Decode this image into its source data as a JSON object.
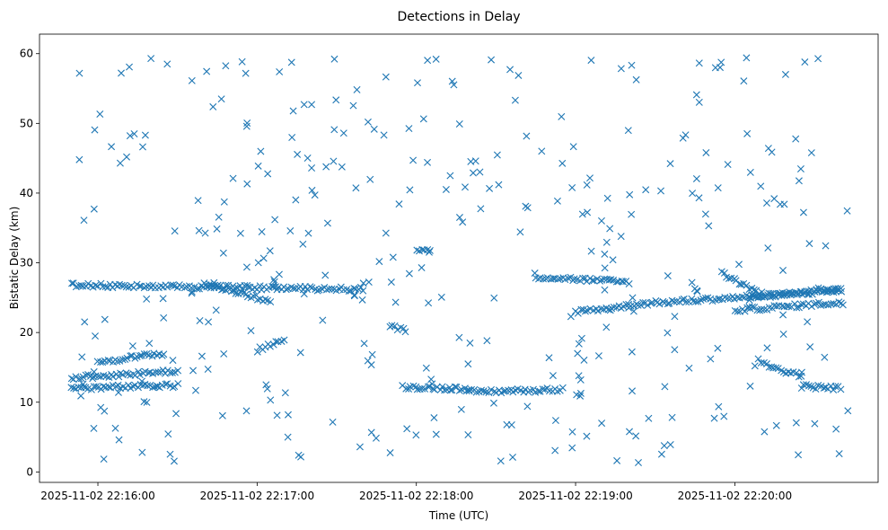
{
  "chart_data": {
    "type": "scatter",
    "title": "Detections in Delay",
    "xlabel": "Time (UTC)",
    "ylabel": "Bistatic Delay (km)",
    "marker": "x",
    "marker_color": "#1f77b4",
    "grid": false,
    "legend": "none",
    "xlim": [
      "2025-11-02 22:15:38",
      "2025-11-02 22:20:54"
    ],
    "ylim": [
      -1.5,
      62.8
    ],
    "x_ticks": [
      "2025-11-02 22:16:00",
      "2025-11-02 22:17:00",
      "2025-11-02 22:18:00",
      "2025-11-02 22:19:00",
      "2025-11-02 22:20:00"
    ],
    "y_ticks": [
      0,
      10,
      20,
      30,
      40,
      50,
      60
    ],
    "start_time": "2025-11-02 22:15:50",
    "end_time": "2025-11-02 22:20:43",
    "bands": [
      {
        "t0": "2025-11-02 22:15:50",
        "t1": "2025-11-02 22:17:40",
        "y0": 26.8,
        "y1": 26.2
      },
      {
        "t0": "2025-11-02 22:15:50",
        "t1": "2025-11-02 22:16:30",
        "y0": 13.5,
        "y1": 14.5
      },
      {
        "t0": "2025-11-02 22:15:50",
        "t1": "2025-11-02 22:16:30",
        "y0": 12.0,
        "y1": 12.4
      },
      {
        "t0": "2025-11-02 22:16:00",
        "t1": "2025-11-02 22:16:25",
        "y0": 15.8,
        "y1": 17.0
      },
      {
        "t0": "2025-11-02 22:16:40",
        "t1": "2025-11-02 22:17:05",
        "y0": 27.0,
        "y1": 24.5
      },
      {
        "t0": "2025-11-02 22:17:00",
        "t1": "2025-11-02 22:17:10",
        "y0": 17.5,
        "y1": 19.0
      },
      {
        "t0": "2025-11-02 22:17:50",
        "t1": "2025-11-02 22:17:55",
        "y0": 20.8,
        "y1": 20.5
      },
      {
        "t0": "2025-11-02 22:17:55",
        "t1": "2025-11-02 22:18:20",
        "y0": 12.2,
        "y1": 11.9
      },
      {
        "t0": "2025-11-02 22:18:00",
        "t1": "2025-11-02 22:18:05",
        "y0": 32.0,
        "y1": 31.5
      },
      {
        "t0": "2025-11-02 22:18:20",
        "t1": "2025-11-02 22:18:55",
        "y0": 11.5,
        "y1": 11.8
      },
      {
        "t0": "2025-11-02 22:18:45",
        "t1": "2025-11-02 22:19:20",
        "y0": 28.0,
        "y1": 27.2
      },
      {
        "t0": "2025-11-02 22:19:00",
        "t1": "2025-11-02 22:19:20",
        "y0": 23.0,
        "y1": 23.8
      },
      {
        "t0": "2025-11-02 22:19:20",
        "t1": "2025-11-02 22:20:40",
        "y0": 24.0,
        "y1": 26.0
      },
      {
        "t0": "2025-11-02 22:19:55",
        "t1": "2025-11-02 22:20:10",
        "y0": 28.5,
        "y1": 25.5
      },
      {
        "t0": "2025-11-02 22:20:00",
        "t1": "2025-11-02 22:20:40",
        "y0": 23.2,
        "y1": 24.3
      },
      {
        "t0": "2025-11-02 22:20:05",
        "t1": "2025-11-02 22:20:40",
        "y0": 25.0,
        "y1": 26.5
      },
      {
        "t0": "2025-11-02 22:20:10",
        "t1": "2025-11-02 22:20:25",
        "y0": 15.5,
        "y1": 13.8
      },
      {
        "t0": "2025-11-02 22:20:25",
        "t1": "2025-11-02 22:20:40",
        "y0": 12.3,
        "y1": 12.0
      }
    ]
  }
}
